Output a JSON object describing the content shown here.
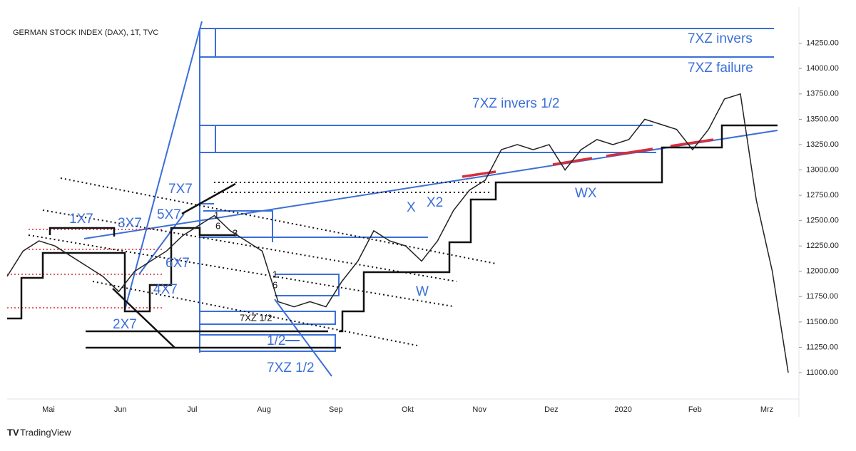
{
  "header": {
    "title": "GERMAN STOCK INDEX (DAX), 1T, TVC",
    "brand": "TradingView"
  },
  "chart_data": {
    "type": "line",
    "color": "#222222",
    "x_labels": [
      "Mai",
      "Jun",
      "Jul",
      "Aug",
      "Sep",
      "Okt",
      "Nov",
      "Dez",
      "2020",
      "Feb",
      "Mrz"
    ],
    "series": [
      {
        "values": [
          11950,
          12200,
          12300,
          12250,
          12150,
          12050,
          11950,
          11800,
          12000,
          12100,
          12200,
          12350,
          12450,
          12550,
          12400,
          12300,
          12200,
          11700,
          11650,
          11700,
          11650,
          11900,
          12100,
          12400,
          12300,
          12250,
          12100,
          12300,
          12600,
          12800,
          12900,
          13200,
          13250,
          13200,
          13250,
          13000,
          13200,
          13300,
          13250,
          13300,
          13500,
          13450,
          13400,
          13200,
          13400,
          13700,
          13750,
          12700,
          12000,
          11000
        ]
      }
    ],
    "ylim": [
      10740,
      14480
    ],
    "yticks": [
      {
        "value": 11000,
        "label": "11000.00"
      },
      {
        "value": 11250,
        "label": "11250.00"
      },
      {
        "value": 11500,
        "label": "11500.00"
      },
      {
        "value": 11750,
        "label": "11750.00"
      },
      {
        "value": 12000,
        "label": "12000.00"
      },
      {
        "value": 12250,
        "label": "12250.00"
      },
      {
        "value": 12500,
        "label": "12500.00"
      },
      {
        "value": 12750,
        "label": "12750.00"
      },
      {
        "value": 13000,
        "label": "13000.00"
      },
      {
        "value": 13250,
        "label": "13250.00"
      },
      {
        "value": 13500,
        "label": "13500.00"
      },
      {
        "value": 13750,
        "label": "13750.00"
      },
      {
        "value": 14000,
        "label": "14000.00"
      },
      {
        "value": 14250,
        "label": "14250.00"
      }
    ],
    "annotations": [
      "7XZ invers",
      "7XZ failure",
      "7XZ invers 1/2",
      "7X7",
      "1X7",
      "3X7",
      "5X7",
      "6X7",
      "4X7",
      "2X7",
      "X",
      "X2",
      "W",
      "WX",
      "7XZ 1/2",
      "7XZ 1/2",
      "1/2",
      "1",
      "6",
      "3",
      "1",
      "6"
    ]
  }
}
